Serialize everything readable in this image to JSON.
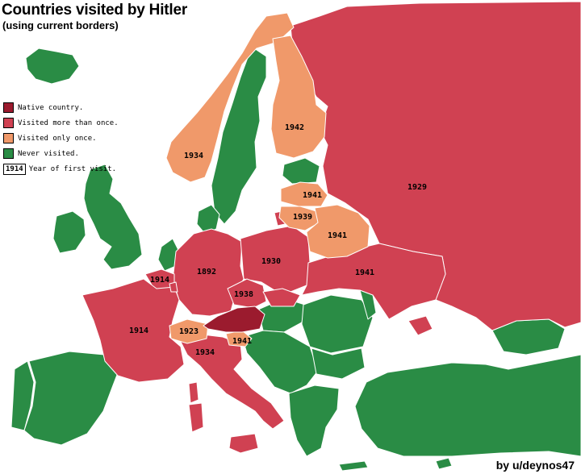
{
  "header": {
    "title": "Countries visited by Hitler",
    "subtitle": "(using current borders)"
  },
  "legend": {
    "native": "Native country.",
    "more_than_once": "Visited more than once.",
    "only_once": "Visited only once.",
    "never": "Never visited.",
    "year_sample": "1914",
    "year_desc": "Year of first visit."
  },
  "colors": {
    "native": "#9b1b2e",
    "more_than_once": "#d04152",
    "only_once": "#f0996a",
    "never": "#2a8c45",
    "sea": "#ffffff"
  },
  "years": {
    "russia": "1929",
    "finland": "1942",
    "norway": "1934",
    "latvia": "1941",
    "lithuania": "1939",
    "belarus": "1941",
    "belgium": "1914",
    "germany": "1892",
    "poland": "1930",
    "czechia": "1938",
    "ukraine": "1941",
    "france": "1914",
    "switzerland": "1923",
    "slovenia": "1941",
    "italy": "1934"
  },
  "credit": "by u/deynos47"
}
